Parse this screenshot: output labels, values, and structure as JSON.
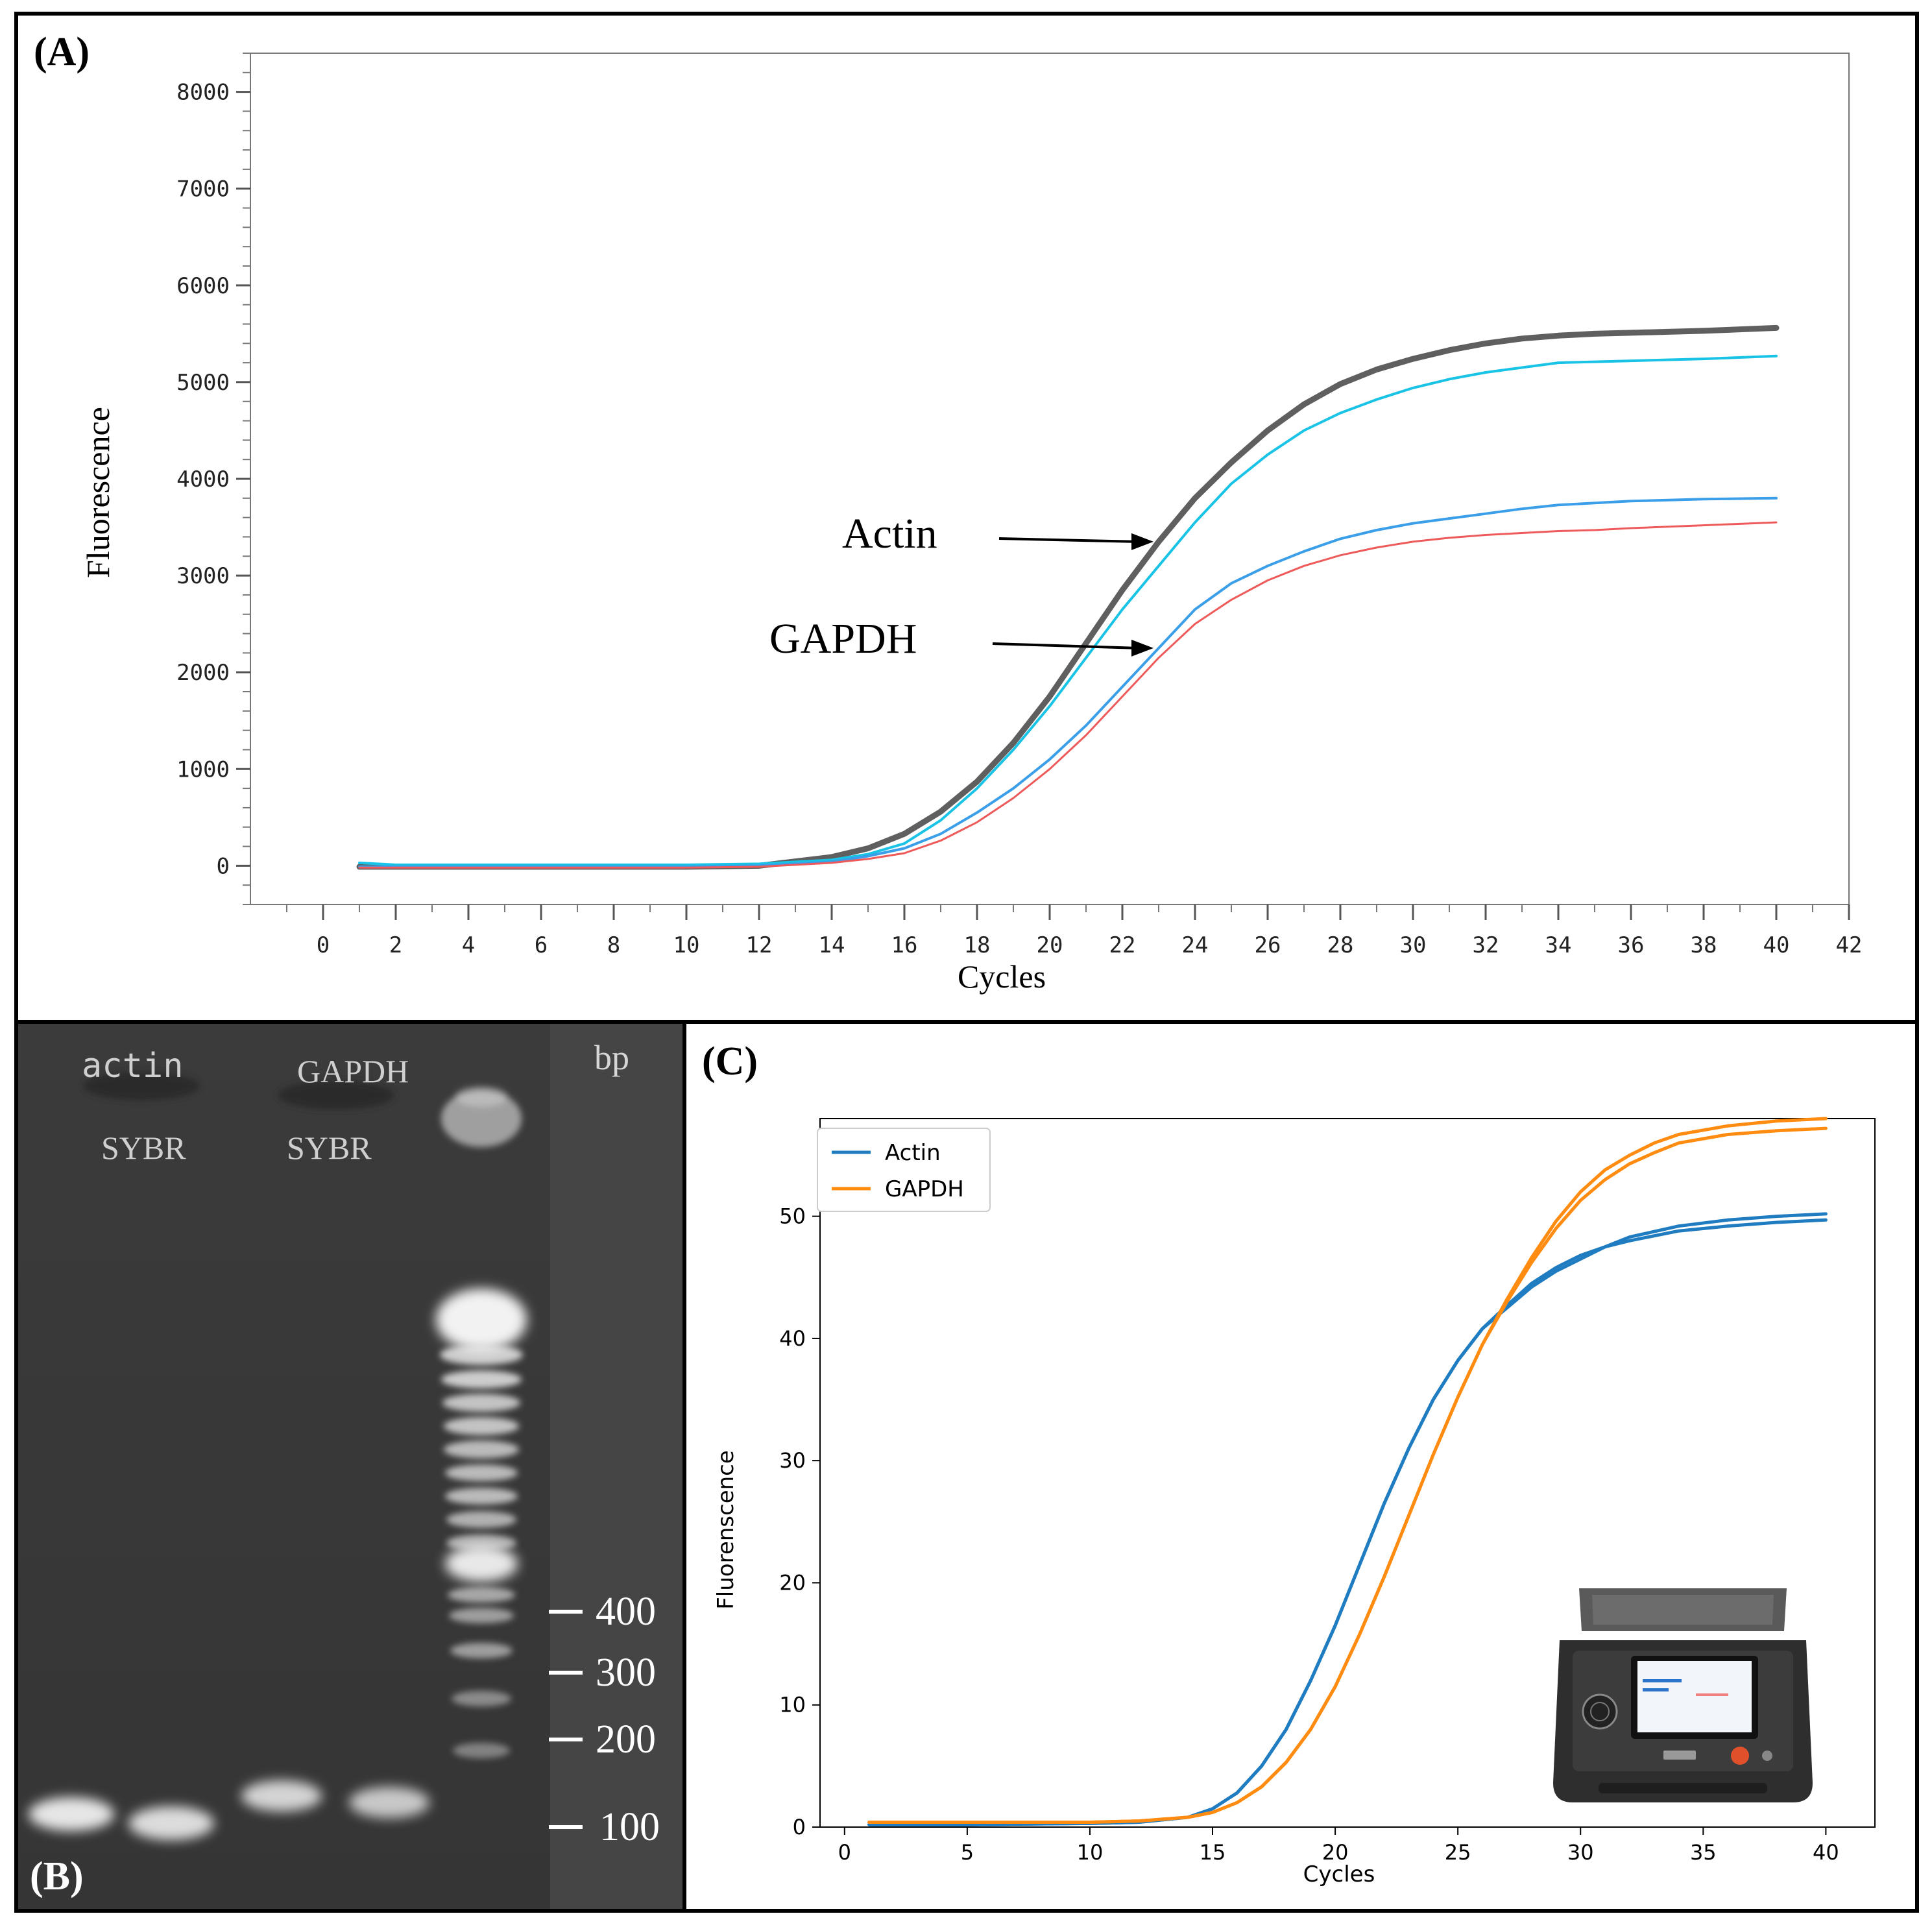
{
  "chart_data": [
    {
      "panel_label": "(A)",
      "type": "line",
      "xlabel": "Cycles",
      "ylabel": "Fluorescence",
      "xlim": [
        -2,
        42
      ],
      "ylim": [
        -400,
        8400
      ],
      "x_ticks": [
        0,
        2,
        4,
        6,
        8,
        10,
        12,
        14,
        16,
        18,
        20,
        22,
        24,
        26,
        28,
        30,
        32,
        34,
        36,
        38,
        40,
        42
      ],
      "y_ticks": [
        0,
        1000,
        2000,
        3000,
        4000,
        5000,
        6000,
        7000,
        8000
      ],
      "grid": true,
      "series": [
        {
          "color": "#5f5f5f",
          "x": [
            1,
            5,
            10,
            12,
            14,
            15,
            16,
            17,
            18,
            19,
            20,
            21,
            22,
            23,
            24,
            25,
            26,
            27,
            28,
            29,
            30,
            31,
            32,
            33,
            34,
            35,
            36,
            38,
            40
          ],
          "y": [
            -10,
            -10,
            -10,
            0,
            90,
            180,
            330,
            560,
            870,
            1270,
            1750,
            2300,
            2850,
            3350,
            3800,
            4170,
            4500,
            4770,
            4980,
            5130,
            5240,
            5330,
            5400,
            5450,
            5480,
            5500,
            5510,
            5530,
            5560
          ]
        },
        {
          "color": "#19c3e6",
          "x": [
            1,
            2,
            5,
            10,
            12,
            14,
            15,
            16,
            17,
            18,
            19,
            20,
            21,
            22,
            23,
            24,
            25,
            26,
            27,
            28,
            29,
            30,
            31,
            32,
            33,
            34,
            35,
            36,
            38,
            40
          ],
          "y": [
            30,
            10,
            10,
            10,
            20,
            60,
            120,
            230,
            470,
            800,
            1200,
            1650,
            2150,
            2650,
            3100,
            3550,
            3950,
            4250,
            4500,
            4680,
            4820,
            4940,
            5030,
            5100,
            5150,
            5200,
            5210,
            5220,
            5240,
            5270
          ]
        },
        {
          "color": "#3a9ee8",
          "x": [
            1,
            5,
            10,
            12,
            14,
            15,
            16,
            17,
            18,
            19,
            20,
            21,
            22,
            23,
            24,
            25,
            26,
            27,
            28,
            29,
            30,
            31,
            32,
            33,
            34,
            35,
            36,
            38,
            40
          ],
          "y": [
            -10,
            -10,
            -10,
            0,
            40,
            100,
            180,
            330,
            550,
            800,
            1100,
            1450,
            1850,
            2250,
            2650,
            2920,
            3100,
            3250,
            3380,
            3470,
            3540,
            3590,
            3640,
            3690,
            3730,
            3750,
            3770,
            3790,
            3800
          ]
        },
        {
          "color": "#ee5a5a",
          "x": [
            1,
            5,
            10,
            12,
            14,
            15,
            16,
            17,
            18,
            19,
            20,
            21,
            22,
            23,
            24,
            25,
            26,
            27,
            28,
            29,
            30,
            31,
            32,
            33,
            34,
            35,
            36,
            38,
            40
          ],
          "y": [
            -20,
            -20,
            -20,
            -10,
            30,
            70,
            130,
            260,
            450,
            700,
            1000,
            1350,
            1750,
            2150,
            2500,
            2750,
            2950,
            3100,
            3210,
            3290,
            3350,
            3390,
            3420,
            3440,
            3460,
            3470,
            3490,
            3520,
            3550
          ]
        }
      ],
      "annotations": [
        {
          "text": "Actin",
          "points_to": [
            23,
            3350
          ]
        },
        {
          "text": "GAPDH",
          "points_to": [
            23,
            2250
          ]
        }
      ]
    },
    {
      "panel_label": "(B)",
      "type": "gel",
      "lane_labels_top": [
        "actin",
        "GAPDH",
        "bp"
      ],
      "lane_labels_second": [
        "SYBR",
        "SYBR"
      ],
      "ladder_labels": [
        "400",
        "300",
        "200",
        "100"
      ]
    },
    {
      "panel_label": "(C)",
      "type": "line",
      "xlabel": "Cycles",
      "ylabel": "Fluorenscence",
      "xlim": [
        -1,
        42
      ],
      "ylim": [
        0,
        58
      ],
      "x_ticks": [
        0,
        5,
        10,
        15,
        20,
        25,
        30,
        35,
        40
      ],
      "y_ticks": [
        0,
        10,
        20,
        30,
        40,
        50
      ],
      "grid": false,
      "legend_position": "top-left",
      "legend": [
        {
          "label": "Actin",
          "color": "#1f7cc0"
        },
        {
          "label": "GAPDH",
          "color": "#ff8c10"
        }
      ],
      "series": [
        {
          "color": "#1f7cc0",
          "x": [
            1,
            5,
            10,
            12,
            14,
            15,
            16,
            17,
            18,
            19,
            20,
            21,
            22,
            23,
            24,
            25,
            26,
            27,
            28,
            29,
            30,
            31,
            32,
            34,
            36,
            38,
            40
          ],
          "y": [
            0.2,
            0.2,
            0.3,
            0.4,
            0.8,
            1.5,
            2.8,
            5,
            8,
            12,
            16.5,
            21.5,
            26.5,
            31,
            35,
            38.2,
            40.8,
            42.7,
            44.5,
            45.8,
            46.8,
            47.5,
            48,
            48.8,
            49.2,
            49.5,
            49.7
          ]
        },
        {
          "color": "#1f7cc0",
          "x": [
            1,
            5,
            10,
            12,
            14,
            15,
            16,
            17,
            18,
            19,
            20,
            21,
            22,
            23,
            24,
            25,
            26,
            27,
            28,
            29,
            30,
            31,
            32,
            34,
            36,
            38,
            40
          ],
          "y": [
            0.2,
            0.2,
            0.3,
            0.4,
            0.8,
            1.5,
            2.8,
            5,
            8,
            12,
            16.5,
            21.5,
            26.5,
            31,
            35,
            38.2,
            40.8,
            42.5,
            44.2,
            45.5,
            46.5,
            47.5,
            48.3,
            49.2,
            49.7,
            50,
            50.2
          ]
        },
        {
          "color": "#ff8c10",
          "x": [
            1,
            5,
            10,
            12,
            14,
            15,
            16,
            17,
            18,
            19,
            20,
            21,
            22,
            23,
            24,
            25,
            26,
            27,
            28,
            29,
            30,
            31,
            32,
            33,
            34,
            36,
            38,
            40
          ],
          "y": [
            0.4,
            0.4,
            0.4,
            0.5,
            0.8,
            1.2,
            2,
            3.3,
            5.3,
            8,
            11.5,
            15.8,
            20.5,
            25.5,
            30.5,
            35.2,
            39.5,
            43,
            46.2,
            49,
            51.3,
            53,
            54.3,
            55.2,
            56,
            56.7,
            57,
            57.2
          ]
        },
        {
          "color": "#ff8c10",
          "x": [
            1,
            5,
            10,
            12,
            14,
            15,
            16,
            17,
            18,
            19,
            20,
            21,
            22,
            23,
            24,
            25,
            26,
            27,
            28,
            29,
            30,
            31,
            32,
            33,
            34,
            36,
            38,
            40
          ],
          "y": [
            0.4,
            0.4,
            0.4,
            0.5,
            0.8,
            1.2,
            2,
            3.3,
            5.3,
            8,
            11.5,
            15.8,
            20.5,
            25.5,
            30.5,
            35.2,
            39.5,
            43.2,
            46.6,
            49.6,
            52,
            53.8,
            55,
            56,
            56.7,
            57.4,
            57.8,
            58
          ]
        }
      ]
    }
  ]
}
